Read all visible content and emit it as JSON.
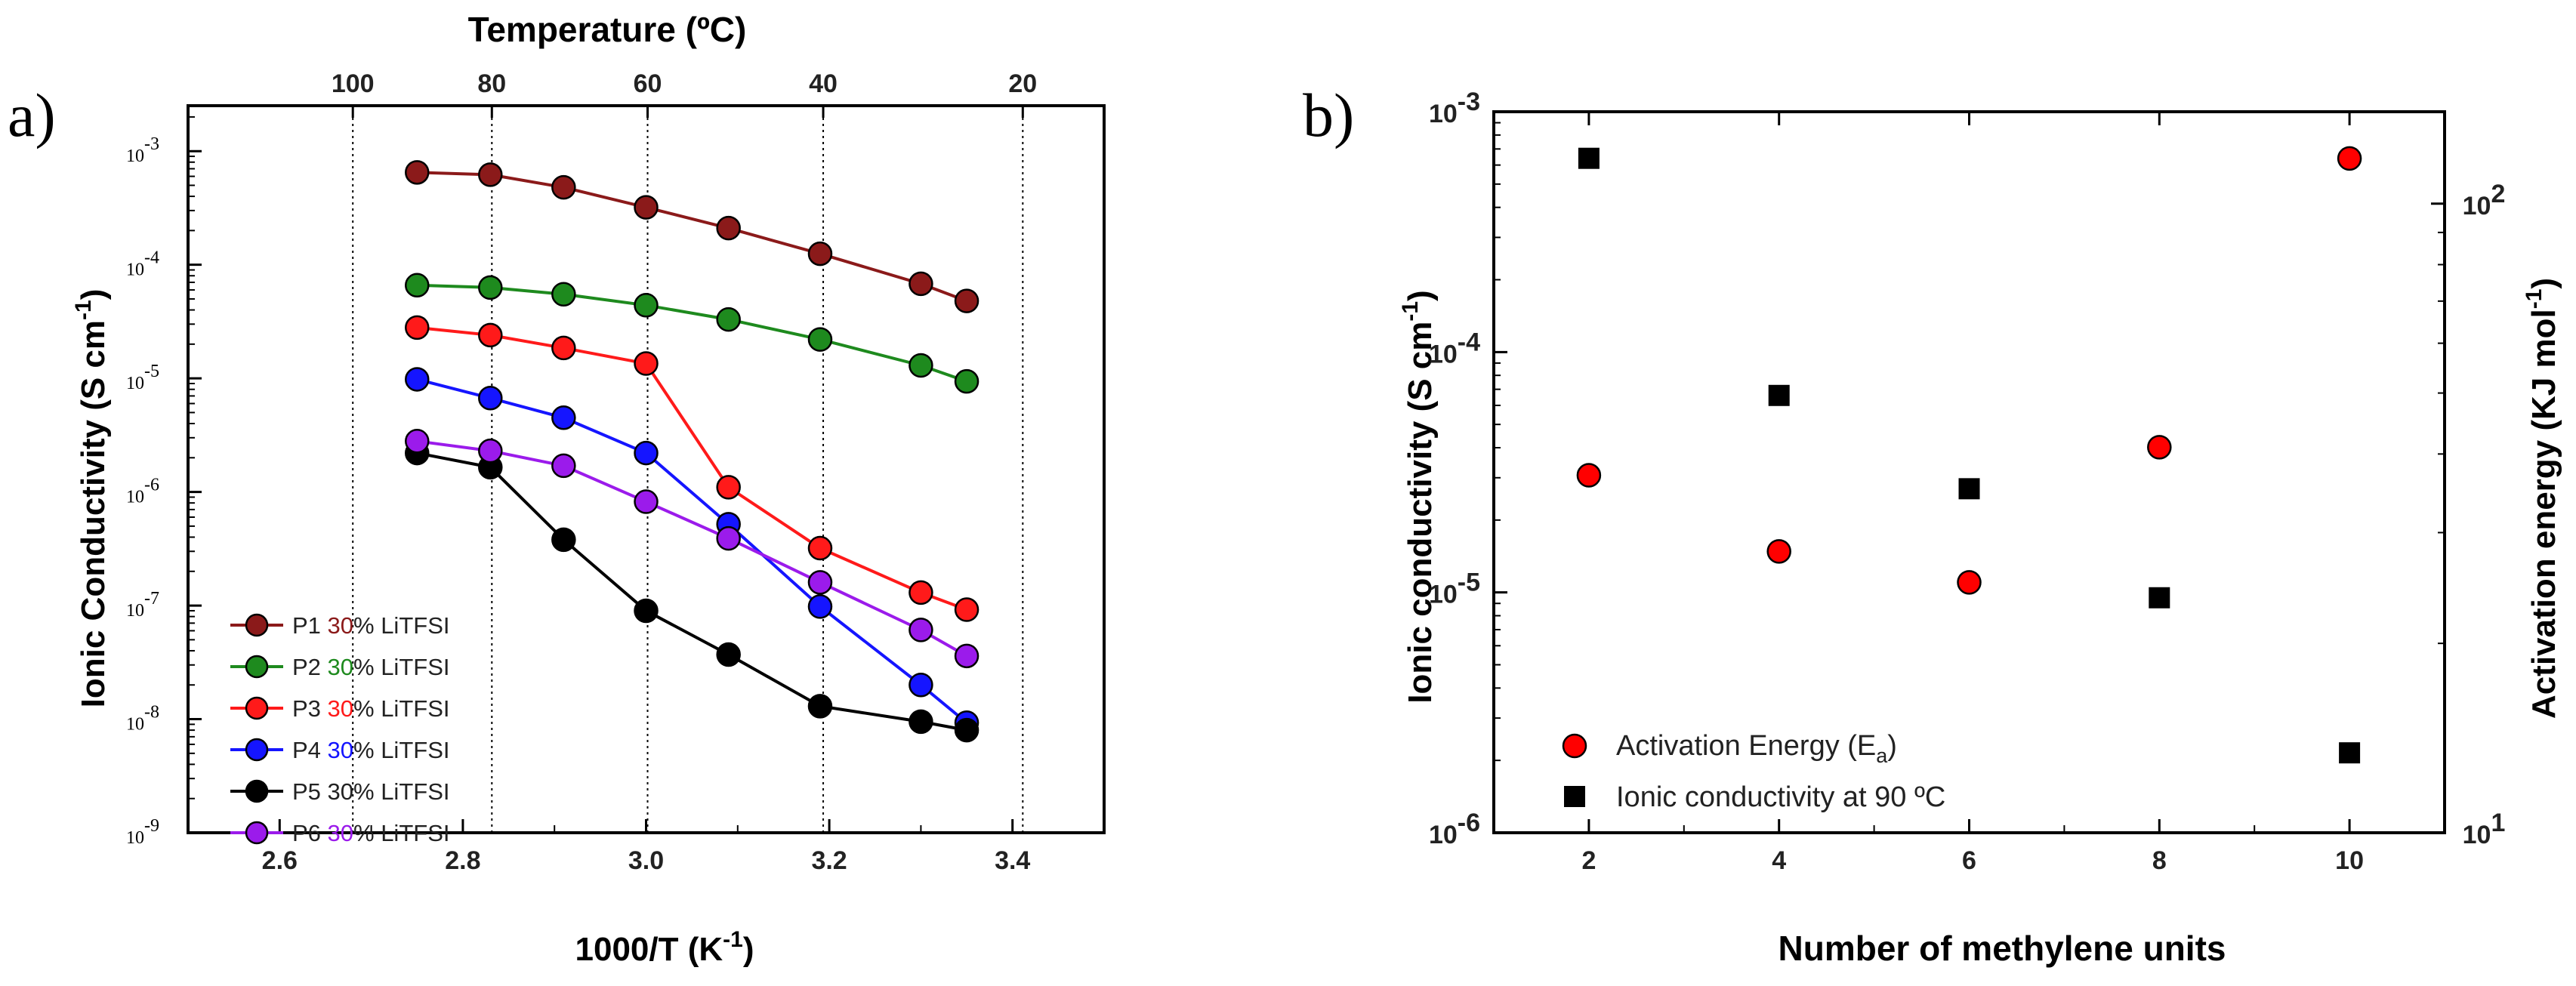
{
  "chart_data": [
    {
      "panel_label": "a)",
      "type": "line",
      "xlabel_main": "1000/T (K",
      "xlabel_sup": "-1",
      "xlabel_end": ")",
      "ylabel_main": "Ionic Conductivity (S cm",
      "ylabel_sup": "-1",
      "ylabel_end": ")",
      "top_axis_label": "Temperature (ºC)",
      "xlim": [
        2.5,
        3.5
      ],
      "ylim_exp": [
        -9,
        -2.6
      ],
      "x_ticks": [
        2.6,
        2.8,
        3.0,
        3.2,
        3.4
      ],
      "x_tick_labels": [
        "2.6",
        "2.8",
        "3.0",
        "3.2",
        "3.4"
      ],
      "y_ticks_exp": [
        -9,
        -8,
        -7,
        -6,
        -5,
        -4,
        -3
      ],
      "y_tick_base": "10",
      "y_tick_exps": [
        "-9",
        "-8",
        "-7",
        "-6",
        "-5",
        "-4",
        "-3"
      ],
      "top_ticks_celsius": [
        100,
        80,
        60,
        40,
        20
      ],
      "top_tick_labels": [
        "100",
        "80",
        "60",
        "40",
        "20"
      ],
      "x": [
        2.75,
        2.83,
        2.91,
        3.0,
        3.09,
        3.19,
        3.3,
        3.35
      ],
      "series": [
        {
          "name": "P1",
          "prefix": "P1 ",
          "pct": "30",
          "suffix": "% LiTFSI",
          "color": "#8B1A1A",
          "values": [
            0.00065,
            0.00062,
            0.00048,
            0.00032,
            0.00021,
            0.000125,
            6.8e-05,
            4.8e-05
          ]
        },
        {
          "name": "P2",
          "prefix": "P2 ",
          "pct": "30",
          "suffix": "% LiTFSI",
          "color": "#1E8A1E",
          "values": [
            6.6e-05,
            6.3e-05,
            5.5e-05,
            4.4e-05,
            3.3e-05,
            2.2e-05,
            1.3e-05,
            9.4e-06
          ]
        },
        {
          "name": "P3",
          "prefix": "P3 ",
          "pct": "30",
          "suffix": "% LiTFSI",
          "color": "#FF1A1A",
          "values": [
            2.8e-05,
            2.4e-05,
            1.85e-05,
            1.35e-05,
            1.1e-06,
            3.2e-07,
            1.3e-07,
            9.2e-08
          ]
        },
        {
          "name": "P4",
          "prefix": "P4 ",
          "pct": "30",
          "suffix": "% LiTFSI",
          "color": "#1515FF",
          "values": [
            9.8e-06,
            6.7e-06,
            4.5e-06,
            2.2e-06,
            5.2e-07,
            9.8e-08,
            2e-08,
            9.3e-09
          ]
        },
        {
          "name": "P5",
          "prefix": "P5 ",
          "pct": "30",
          "suffix": "% LiTFSI",
          "color": "#000000",
          "values": [
            2.2e-06,
            1.65e-06,
            3.8e-07,
            9e-08,
            3.7e-08,
            1.3e-08,
            9.5e-09,
            8e-09
          ]
        },
        {
          "name": "P6",
          "prefix": "P6 ",
          "pct": "30",
          "suffix": "% LiTFSI",
          "color": "#9B1BEB",
          "values": [
            2.8e-06,
            2.3e-06,
            1.7e-06,
            8.2e-07,
            3.9e-07,
            1.6e-07,
            6.1e-08,
            3.6e-08
          ]
        }
      ],
      "legend_position": "bottom-left",
      "grid": "vertical dotted lines at top-axis temperatures"
    },
    {
      "panel_label": "b)",
      "type": "scatter",
      "xlabel": "Number of methylene units",
      "ylabel_left_main": "Ionic conductivity (S cm",
      "ylabel_left_sup": "-1",
      "ylabel_left_end": ")",
      "ylabel_right_main": "Activation energy (KJ mol",
      "ylabel_right_sup": "-1",
      "ylabel_right_end": ")",
      "xlim": [
        1,
        11
      ],
      "x_ticks": [
        2,
        4,
        6,
        8,
        10
      ],
      "x_tick_labels": [
        "2",
        "4",
        "6",
        "8",
        "10"
      ],
      "ylim_left_exp": [
        -6,
        -3
      ],
      "y_left_ticks_exp": [
        -6,
        -5,
        -4,
        -3
      ],
      "y_left_tick_base": "10",
      "y_left_tick_exps": [
        "-6",
        "-5",
        "-4",
        "-3"
      ],
      "ylim_right": [
        10,
        140
      ],
      "y_right_ticks": [
        10,
        100
      ],
      "y_right_tick_base": "10",
      "y_right_tick_exps": [
        "1",
        "2"
      ],
      "series": [
        {
          "name": "Activation Energy (Ea)",
          "label_main": "Activation Energy (E",
          "label_sub": "a",
          "label_end": ")",
          "axis": "right",
          "marker": "circle",
          "color": "#FF0000",
          "x": [
            2,
            4,
            6,
            8,
            10
          ],
          "values": [
            37,
            28,
            25,
            41,
            118
          ]
        },
        {
          "name": "Ionic conductivity at 90 ºC",
          "label": "Ionic conductivity at 90 ºC",
          "axis": "left",
          "marker": "square",
          "color": "#000000",
          "x": [
            2,
            4,
            6,
            8,
            10
          ],
          "values": [
            0.00064,
            6.6e-05,
            2.7e-05,
            9.5e-06,
            2.15e-06
          ]
        }
      ],
      "legend_position": "bottom-left"
    }
  ]
}
